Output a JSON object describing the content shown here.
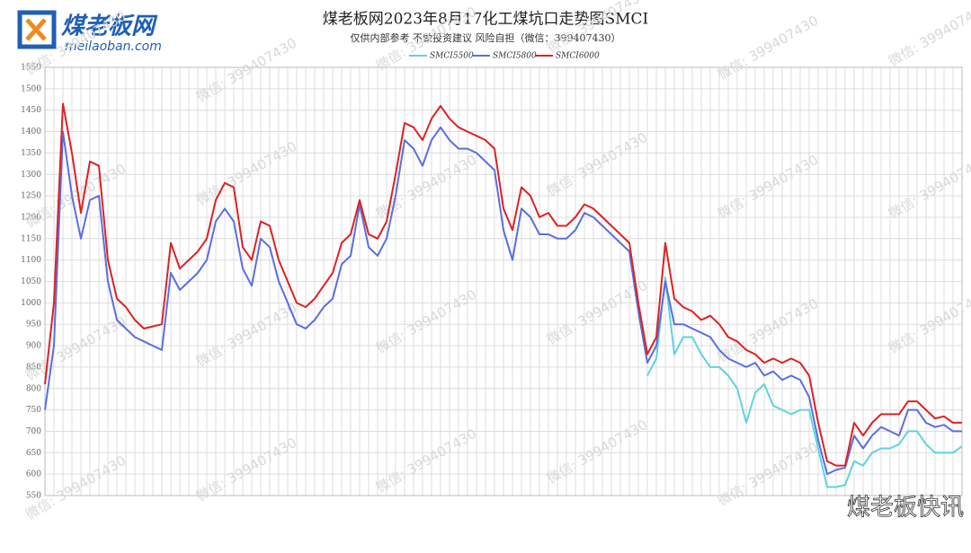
{
  "brand": {
    "name": "煤老板网",
    "site": "meilaoban.com",
    "footer": "煤老板快讯"
  },
  "watermark": "微信: 399407430",
  "chart_data": {
    "type": "line",
    "title": "煤老板网2023年8月17化工煤坑口走势图SMCI",
    "subtitle": "仅供内部参考 不做投资建议 风险自担（微信：399407430）",
    "categories": [
      null,
      null,
      null,
      null,
      null,
      null,
      null,
      null,
      null,
      null,
      null,
      null,
      null,
      null,
      null,
      null,
      null,
      null,
      null,
      null,
      null,
      null,
      null,
      null,
      null,
      null,
      null,
      null,
      null,
      null,
      null,
      null,
      null,
      null,
      null,
      null,
      null,
      null,
      null,
      null,
      null,
      null,
      null,
      null,
      null,
      null,
      null,
      null,
      null,
      null,
      null,
      null,
      null,
      null,
      null,
      null,
      null,
      null,
      null,
      null,
      null,
      null,
      null,
      null,
      null,
      null,
      null,
      null,
      null,
      null,
      null,
      null,
      null,
      null,
      null,
      null,
      null,
      null,
      null,
      null,
      null,
      null,
      null,
      null,
      null,
      null,
      null,
      null,
      null,
      null,
      null,
      null,
      null,
      null,
      null,
      null,
      null,
      null,
      null,
      null,
      null,
      null,
      null
    ],
    "series": [
      {
        "name": "SMCI5500",
        "color": "#5fd3e0",
        "values": [
          null,
          null,
          null,
          null,
          null,
          null,
          null,
          null,
          null,
          null,
          null,
          null,
          null,
          null,
          null,
          null,
          null,
          null,
          null,
          null,
          null,
          null,
          null,
          null,
          null,
          null,
          null,
          null,
          null,
          null,
          null,
          null,
          null,
          null,
          null,
          null,
          null,
          null,
          null,
          null,
          null,
          null,
          null,
          null,
          null,
          null,
          null,
          null,
          null,
          null,
          null,
          null,
          null,
          null,
          null,
          null,
          null,
          null,
          null,
          null,
          null,
          null,
          null,
          null,
          null,
          null,
          null,
          830,
          870,
          1060,
          880,
          920,
          920,
          880,
          850,
          850,
          830,
          800,
          720,
          790,
          810,
          760,
          750,
          740,
          750,
          750,
          660,
          570,
          570,
          575,
          630,
          620,
          650,
          660,
          660,
          670,
          700,
          700,
          670,
          650,
          650,
          650,
          665
        ]
      },
      {
        "name": "SMCI5800",
        "color": "#5a6ee0",
        "values": [
          750,
          900,
          1400,
          1250,
          1150,
          1240,
          1250,
          1050,
          960,
          940,
          920,
          910,
          900,
          890,
          1070,
          1030,
          1050,
          1070,
          1100,
          1190,
          1220,
          1190,
          1080,
          1040,
          1150,
          1130,
          1050,
          1000,
          950,
          940,
          960,
          990,
          1010,
          1090,
          1110,
          1230,
          1130,
          1110,
          1150,
          1250,
          1380,
          1360,
          1320,
          1380,
          1410,
          1380,
          1360,
          1360,
          1350,
          1330,
          1310,
          1170,
          1100,
          1220,
          1200,
          1160,
          1160,
          1150,
          1150,
          1170,
          1210,
          1200,
          1180,
          1160,
          1140,
          1120,
          980,
          860,
          900,
          1050,
          950,
          950,
          940,
          930,
          920,
          890,
          870,
          860,
          850,
          860,
          830,
          840,
          820,
          830,
          820,
          780,
          680,
          600,
          610,
          615,
          690,
          660,
          690,
          710,
          700,
          690,
          750,
          750,
          720,
          710,
          715,
          700,
          700
        ]
      },
      {
        "name": "SMCI6000",
        "color": "#e02020",
        "values": [
          810,
          1000,
          1465,
          1350,
          1210,
          1330,
          1320,
          1100,
          1010,
          990,
          960,
          940,
          945,
          950,
          1140,
          1080,
          1100,
          1120,
          1150,
          1240,
          1280,
          1270,
          1130,
          1100,
          1190,
          1180,
          1100,
          1050,
          1000,
          990,
          1010,
          1040,
          1070,
          1140,
          1160,
          1240,
          1160,
          1150,
          1190,
          1300,
          1420,
          1410,
          1380,
          1430,
          1460,
          1430,
          1410,
          1400,
          1390,
          1380,
          1360,
          1220,
          1170,
          1270,
          1250,
          1200,
          1210,
          1180,
          1180,
          1200,
          1230,
          1220,
          1200,
          1180,
          1160,
          1140,
          1000,
          880,
          920,
          1140,
          1010,
          990,
          980,
          960,
          970,
          950,
          920,
          910,
          890,
          880,
          860,
          870,
          860,
          870,
          860,
          830,
          720,
          630,
          620,
          620,
          720,
          690,
          720,
          740,
          740,
          740,
          770,
          770,
          750,
          730,
          735,
          720,
          720
        ]
      }
    ],
    "ylim": [
      550,
      1550
    ],
    "yticks": [
      550,
      600,
      650,
      700,
      750,
      800,
      850,
      900,
      950,
      1000,
      1050,
      1100,
      1150,
      1200,
      1250,
      1300,
      1350,
      1400,
      1450,
      1500,
      1550
    ],
    "grid": true,
    "legend": "top"
  }
}
